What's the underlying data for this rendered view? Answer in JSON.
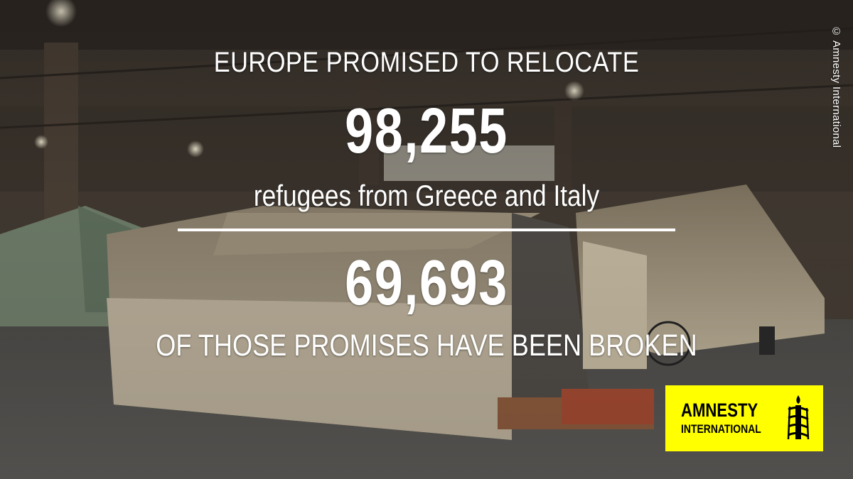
{
  "headline": "EUROPE PROMISED TO RELOCATE",
  "promised_count": "98,255",
  "subheadline": "refugees from Greece and Italy",
  "broken_count": "69,693",
  "footer_line": "OF THOSE PROMISES HAVE BEEN BROKEN",
  "credit": "© Amnesty International",
  "logo": {
    "line1": "AMNESTY",
    "line2": "INTERNATIONAL",
    "background": "#FFFF00",
    "icon": "candle-in-barbed-wire-icon"
  },
  "colors": {
    "text": "#FFFFFF",
    "logo_text": "#000000"
  }
}
